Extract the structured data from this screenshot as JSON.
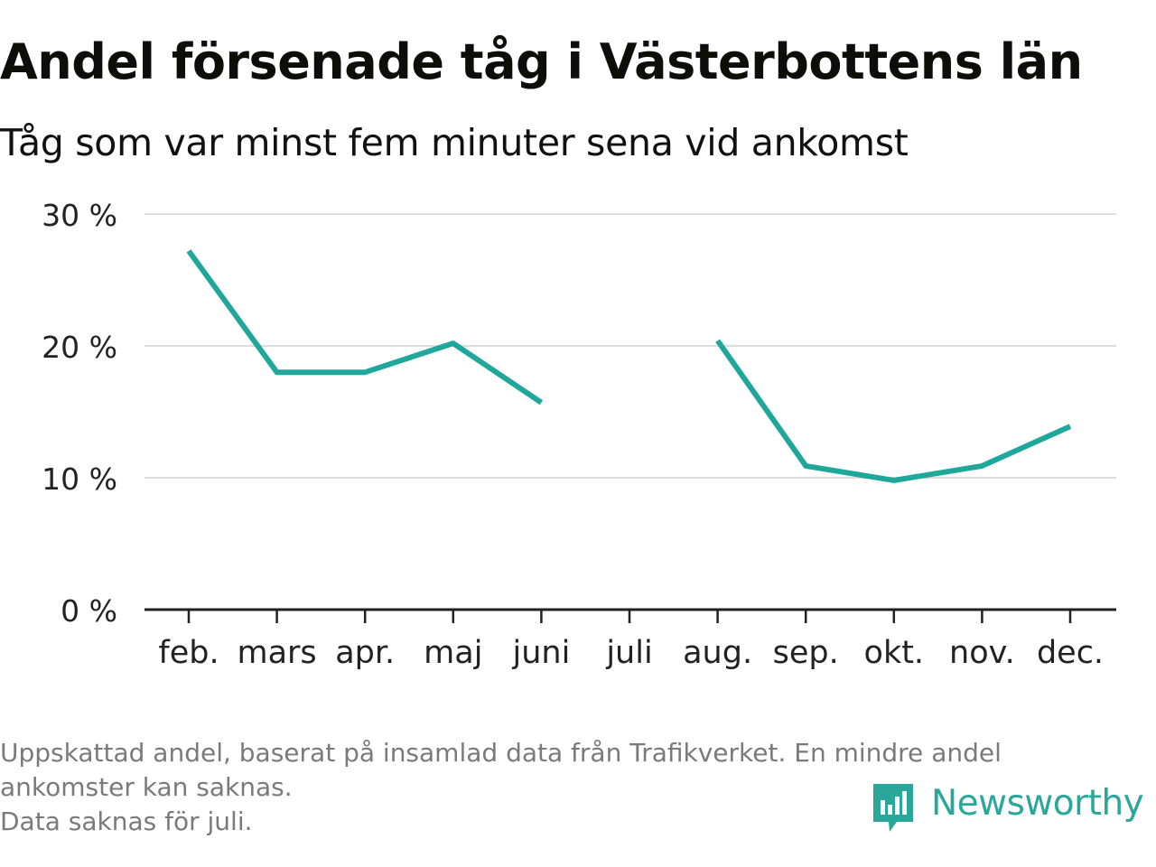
{
  "title": "Andel försenade tåg i Västerbottens län",
  "subtitle": "Tåg som var minst fem minuter sena vid ankomst",
  "footnote": {
    "line1": "Uppskattad andel, baserat på insamlad data från Trafikverket. En mindre andel",
    "line2": "ankomster kan saknas.",
    "line3": "Data saknas för juli."
  },
  "brand": {
    "name": "Newsworthy",
    "color": "#2aa79b"
  },
  "chart_data": {
    "type": "line",
    "categories": [
      "feb.",
      "mars",
      "apr.",
      "maj",
      "juni",
      "juli",
      "aug.",
      "sep.",
      "okt.",
      "nov.",
      "dec."
    ],
    "series": [
      {
        "values": [
          27.2,
          18.0,
          18.0,
          20.2,
          15.7,
          null,
          20.4,
          10.9,
          9.8,
          10.9,
          13.9
        ],
        "color": "#1fa79b"
      }
    ],
    "ylim": [
      0,
      30
    ],
    "yticks": [
      0,
      10,
      20,
      30
    ],
    "ytick_labels": [
      "0 %",
      "10 %",
      "20 %",
      "30 %"
    ],
    "grid": true,
    "xlabel": "",
    "ylabel": ""
  }
}
